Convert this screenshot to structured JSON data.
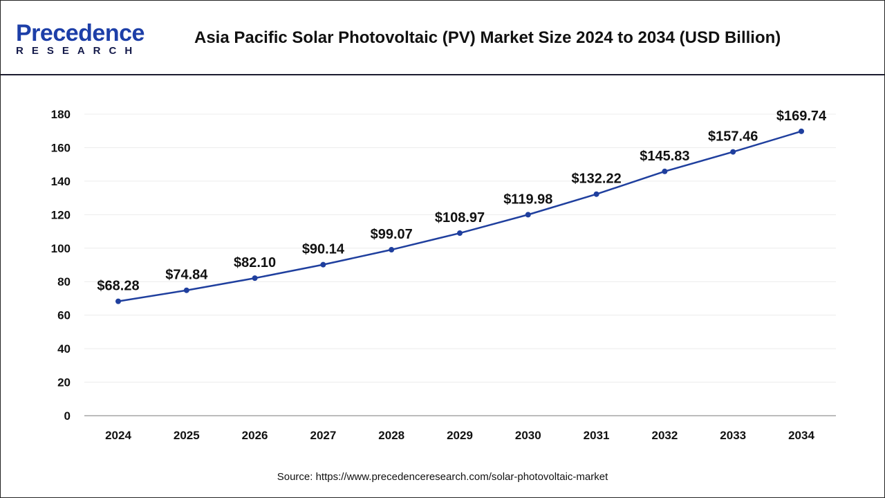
{
  "logo": {
    "line1": "Precedence",
    "line2": "RESEARCH"
  },
  "header": {
    "title": "Asia Pacific Solar Photovoltaic (PV) Market Size 2024 to 2034 (USD Billion)"
  },
  "source": "Source: https://www.precedenceresearch.com/solar-photovoltaic-market",
  "chart_data": {
    "type": "line",
    "title": "Asia Pacific Solar Photovoltaic (PV) Market Size 2024 to 2034 (USD Billion)",
    "categories": [
      "2024",
      "2025",
      "2026",
      "2027",
      "2028",
      "2029",
      "2030",
      "2031",
      "2032",
      "2033",
      "2034"
    ],
    "values": [
      68.28,
      74.84,
      82.1,
      90.14,
      99.07,
      108.97,
      119.98,
      132.22,
      145.83,
      157.46,
      169.74
    ],
    "data_labels": [
      "$68.28",
      "$74.84",
      "$82.10",
      "$90.14",
      "$99.07",
      "$108.97",
      "$119.98",
      "$132.22",
      "$145.83",
      "$157.46",
      "$169.74"
    ],
    "yticks": [
      "0",
      "20",
      "40",
      "60",
      "80",
      "100",
      "120",
      "140",
      "160",
      "180"
    ],
    "ylim": [
      0,
      180
    ],
    "grid": true,
    "line_color": "#1f3f9e",
    "xlabel": "",
    "ylabel": ""
  }
}
